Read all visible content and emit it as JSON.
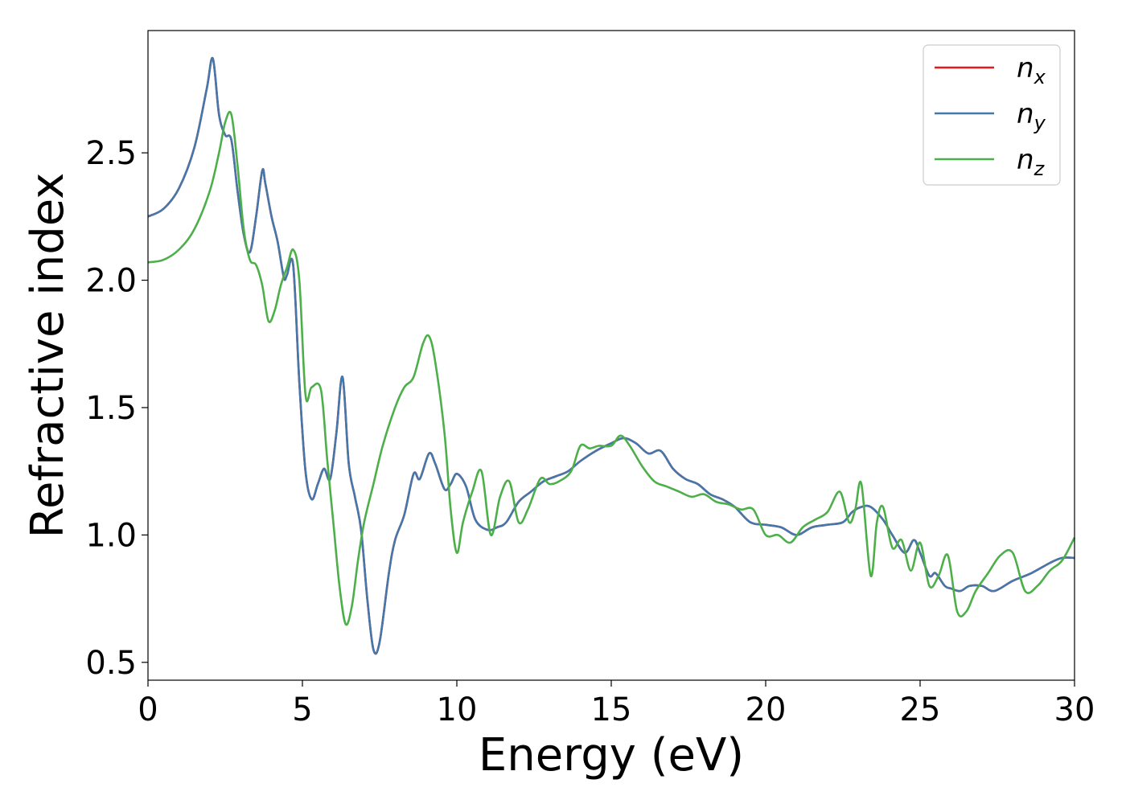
{
  "chart_data": {
    "type": "line",
    "title": "",
    "xlabel": "Energy (eV)",
    "ylabel": "Refractive index",
    "xlim": [
      0,
      30
    ],
    "ylim": [
      0.43,
      2.98
    ],
    "xticks": [
      0,
      5,
      10,
      15,
      20,
      25,
      30
    ],
    "yticks": [
      0.5,
      1.0,
      1.5,
      2.0,
      2.5
    ],
    "xtick_labels": [
      "0",
      "5",
      "10",
      "15",
      "20",
      "25",
      "30"
    ],
    "ytick_labels": [
      "0.5",
      "1.0",
      "1.5",
      "2.0",
      "2.5"
    ],
    "grid": false,
    "legend_position": "top-right",
    "series": [
      {
        "name": "n",
        "sub": "x",
        "color": "#e41a1c",
        "x": [
          0,
          0.5,
          1.0,
          1.5,
          1.9,
          2.1,
          2.3,
          2.5,
          2.7,
          2.9,
          3.1,
          3.3,
          3.5,
          3.7,
          3.8,
          4.0,
          4.2,
          4.4,
          4.5,
          4.7,
          4.9,
          5.1,
          5.3,
          5.5,
          5.7,
          5.9,
          6.1,
          6.3,
          6.5,
          6.7,
          6.9,
          7.1,
          7.3,
          7.5,
          7.8,
          8.0,
          8.3,
          8.6,
          8.8,
          9.1,
          9.3,
          9.6,
          9.8,
          10.0,
          10.3,
          10.6,
          11.0,
          11.3,
          11.6,
          12.0,
          12.4,
          12.8,
          13.2,
          13.6,
          14.0,
          14.5,
          15.0,
          15.4,
          15.8,
          16.2,
          16.6,
          17.0,
          17.4,
          17.8,
          18.2,
          18.6,
          19.0,
          19.5,
          20.0,
          20.5,
          21.0,
          21.5,
          22.0,
          22.5,
          22.8,
          23.1,
          23.4,
          23.8,
          24.1,
          24.5,
          24.8,
          25.0,
          25.3,
          25.5,
          25.8,
          26.0,
          26.3,
          26.6,
          27.0,
          27.4,
          28.0,
          28.6,
          29.2,
          29.6,
          30.0
        ],
        "y": [
          2.25,
          2.28,
          2.36,
          2.52,
          2.75,
          2.87,
          2.65,
          2.57,
          2.55,
          2.35,
          2.18,
          2.11,
          2.25,
          2.43,
          2.38,
          2.25,
          2.15,
          2.01,
          2.02,
          2.06,
          1.6,
          1.25,
          1.14,
          1.2,
          1.26,
          1.22,
          1.4,
          1.62,
          1.28,
          1.15,
          1.02,
          0.75,
          0.55,
          0.58,
          0.85,
          0.98,
          1.08,
          1.24,
          1.22,
          1.32,
          1.28,
          1.18,
          1.2,
          1.24,
          1.19,
          1.06,
          1.02,
          1.03,
          1.05,
          1.13,
          1.17,
          1.21,
          1.23,
          1.25,
          1.29,
          1.33,
          1.36,
          1.38,
          1.36,
          1.32,
          1.33,
          1.26,
          1.22,
          1.2,
          1.16,
          1.14,
          1.11,
          1.05,
          1.04,
          1.03,
          1.0,
          1.03,
          1.04,
          1.05,
          1.09,
          1.11,
          1.11,
          1.06,
          1.0,
          0.93,
          0.98,
          0.93,
          0.84,
          0.85,
          0.8,
          0.79,
          0.78,
          0.8,
          0.8,
          0.78,
          0.82,
          0.85,
          0.89,
          0.91,
          0.91
        ]
      },
      {
        "name": "n",
        "sub": "y",
        "color": "#4477aa",
        "x": [
          0,
          0.5,
          1.0,
          1.5,
          1.9,
          2.1,
          2.3,
          2.5,
          2.7,
          2.9,
          3.1,
          3.3,
          3.5,
          3.7,
          3.8,
          4.0,
          4.2,
          4.4,
          4.5,
          4.7,
          4.9,
          5.1,
          5.3,
          5.5,
          5.7,
          5.9,
          6.1,
          6.3,
          6.5,
          6.7,
          6.9,
          7.1,
          7.3,
          7.5,
          7.8,
          8.0,
          8.3,
          8.6,
          8.8,
          9.1,
          9.3,
          9.6,
          9.8,
          10.0,
          10.3,
          10.6,
          11.0,
          11.3,
          11.6,
          12.0,
          12.4,
          12.8,
          13.2,
          13.6,
          14.0,
          14.5,
          15.0,
          15.4,
          15.8,
          16.2,
          16.6,
          17.0,
          17.4,
          17.8,
          18.2,
          18.6,
          19.0,
          19.5,
          20.0,
          20.5,
          21.0,
          21.5,
          22.0,
          22.5,
          22.8,
          23.1,
          23.4,
          23.8,
          24.1,
          24.5,
          24.8,
          25.0,
          25.3,
          25.5,
          25.8,
          26.0,
          26.3,
          26.6,
          27.0,
          27.4,
          28.0,
          28.6,
          29.2,
          29.6,
          30.0
        ],
        "y": [
          2.25,
          2.28,
          2.36,
          2.52,
          2.75,
          2.87,
          2.65,
          2.57,
          2.55,
          2.35,
          2.18,
          2.11,
          2.25,
          2.43,
          2.38,
          2.25,
          2.15,
          2.01,
          2.02,
          2.06,
          1.6,
          1.25,
          1.14,
          1.2,
          1.26,
          1.22,
          1.4,
          1.62,
          1.28,
          1.15,
          1.02,
          0.75,
          0.55,
          0.58,
          0.85,
          0.98,
          1.08,
          1.24,
          1.22,
          1.32,
          1.28,
          1.18,
          1.2,
          1.24,
          1.19,
          1.06,
          1.02,
          1.03,
          1.05,
          1.13,
          1.17,
          1.21,
          1.23,
          1.25,
          1.29,
          1.33,
          1.36,
          1.38,
          1.36,
          1.32,
          1.33,
          1.26,
          1.22,
          1.2,
          1.16,
          1.14,
          1.11,
          1.05,
          1.04,
          1.03,
          1.0,
          1.03,
          1.04,
          1.05,
          1.09,
          1.11,
          1.11,
          1.06,
          1.0,
          0.93,
          0.98,
          0.93,
          0.84,
          0.85,
          0.8,
          0.79,
          0.78,
          0.8,
          0.8,
          0.78,
          0.82,
          0.85,
          0.89,
          0.91,
          0.91
        ]
      },
      {
        "name": "n",
        "sub": "z",
        "color": "#4daf4a",
        "x": [
          0,
          0.5,
          1.0,
          1.5,
          2.0,
          2.3,
          2.5,
          2.7,
          2.9,
          3.1,
          3.3,
          3.5,
          3.7,
          3.9,
          4.1,
          4.3,
          4.5,
          4.7,
          4.9,
          5.1,
          5.3,
          5.6,
          5.8,
          6.0,
          6.2,
          6.4,
          6.6,
          6.8,
          7.0,
          7.3,
          7.6,
          8.0,
          8.3,
          8.6,
          8.9,
          9.1,
          9.3,
          9.6,
          9.8,
          10.0,
          10.2,
          10.5,
          10.8,
          11.1,
          11.4,
          11.7,
          12.0,
          12.3,
          12.7,
          13.0,
          13.3,
          13.7,
          14.0,
          14.3,
          14.6,
          15.0,
          15.3,
          15.6,
          16.0,
          16.4,
          16.8,
          17.2,
          17.6,
          18.0,
          18.4,
          18.8,
          19.2,
          19.6,
          20.0,
          20.4,
          20.8,
          21.2,
          21.6,
          22.0,
          22.4,
          22.7,
          22.9,
          23.1,
          23.4,
          23.6,
          23.8,
          24.1,
          24.4,
          24.7,
          25.0,
          25.3,
          25.6,
          25.9,
          26.2,
          26.5,
          26.8,
          27.2,
          27.6,
          28.0,
          28.4,
          28.8,
          29.2,
          29.6,
          30.0
        ],
        "y": [
          2.07,
          2.08,
          2.12,
          2.2,
          2.35,
          2.5,
          2.62,
          2.65,
          2.45,
          2.2,
          2.08,
          2.06,
          1.98,
          1.84,
          1.88,
          1.98,
          2.05,
          2.12,
          2.0,
          1.55,
          1.58,
          1.57,
          1.3,
          1.05,
          0.8,
          0.65,
          0.72,
          0.9,
          1.05,
          1.2,
          1.35,
          1.5,
          1.58,
          1.62,
          1.75,
          1.78,
          1.68,
          1.4,
          1.1,
          0.93,
          1.05,
          1.17,
          1.25,
          1.0,
          1.15,
          1.21,
          1.05,
          1.1,
          1.22,
          1.2,
          1.21,
          1.25,
          1.35,
          1.34,
          1.35,
          1.35,
          1.39,
          1.35,
          1.27,
          1.21,
          1.19,
          1.17,
          1.15,
          1.16,
          1.13,
          1.12,
          1.1,
          1.1,
          1.0,
          1.0,
          0.97,
          1.03,
          1.06,
          1.09,
          1.17,
          1.05,
          1.1,
          1.2,
          0.84,
          1.05,
          1.11,
          0.95,
          0.98,
          0.86,
          0.97,
          0.8,
          0.84,
          0.92,
          0.7,
          0.7,
          0.78,
          0.85,
          0.92,
          0.93,
          0.78,
          0.8,
          0.86,
          0.9,
          0.99
        ]
      }
    ]
  }
}
